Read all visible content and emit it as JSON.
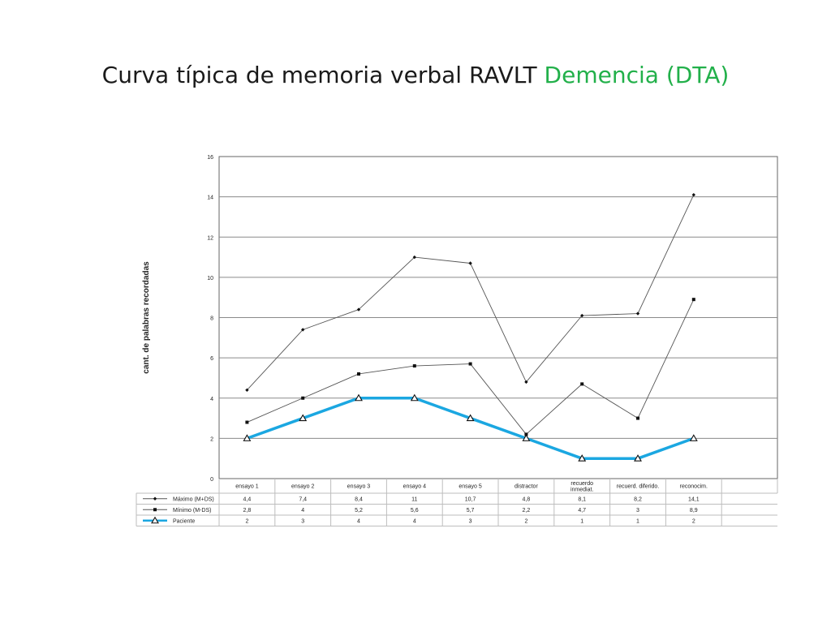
{
  "slide": {
    "title_main": "Curva típica de memoria verbal  RAVLT  ",
    "title_highlight": "Demencia (DTA)",
    "highlight_color": "#22b04a"
  },
  "chart_data": {
    "type": "line",
    "ylabel": "cant. de palabras recordadas",
    "ylim": [
      0,
      16
    ],
    "yticks": [
      0,
      2,
      4,
      6,
      8,
      10,
      12,
      14,
      16
    ],
    "grid": true,
    "legend_placement": "data-table-below",
    "categories": [
      [
        "ensayo 1"
      ],
      [
        "ensayo 2"
      ],
      [
        "ensayo 3"
      ],
      [
        "ensayo 4"
      ],
      [
        "ensayo 5"
      ],
      [
        "distractor"
      ],
      [
        "recuerdo",
        "inmediat."
      ],
      [
        "recuerd. diferido."
      ],
      [
        "reconocim."
      ]
    ],
    "series": [
      {
        "name": "Máximo (M+DS)",
        "values": [
          4.4,
          7.4,
          8.4,
          11,
          10.7,
          4.8,
          8.1,
          8.2,
          14.1
        ],
        "labels": [
          "4,4",
          "7,4",
          "8,4",
          "11",
          "10,7",
          "4,8",
          "8,1",
          "8,2",
          "14,1"
        ],
        "marker": "diamond",
        "color": "#555555"
      },
      {
        "name": "Mínimo (M-DS)",
        "values": [
          2.8,
          4,
          5.2,
          5.6,
          5.7,
          2.2,
          4.7,
          3,
          8.9
        ],
        "labels": [
          "2,8",
          "4",
          "5,2",
          "5,6",
          "5,7",
          "2,2",
          "4,7",
          "3",
          "8,9"
        ],
        "marker": "square",
        "color": "#555555"
      },
      {
        "name": "Paciente",
        "values": [
          2,
          3,
          4,
          4,
          3,
          2,
          1,
          1,
          2
        ],
        "labels": [
          "2",
          "3",
          "4",
          "4",
          "3",
          "2",
          "1",
          "1",
          "2"
        ],
        "marker": "triangle",
        "color": "#1ba7e1"
      }
    ]
  }
}
